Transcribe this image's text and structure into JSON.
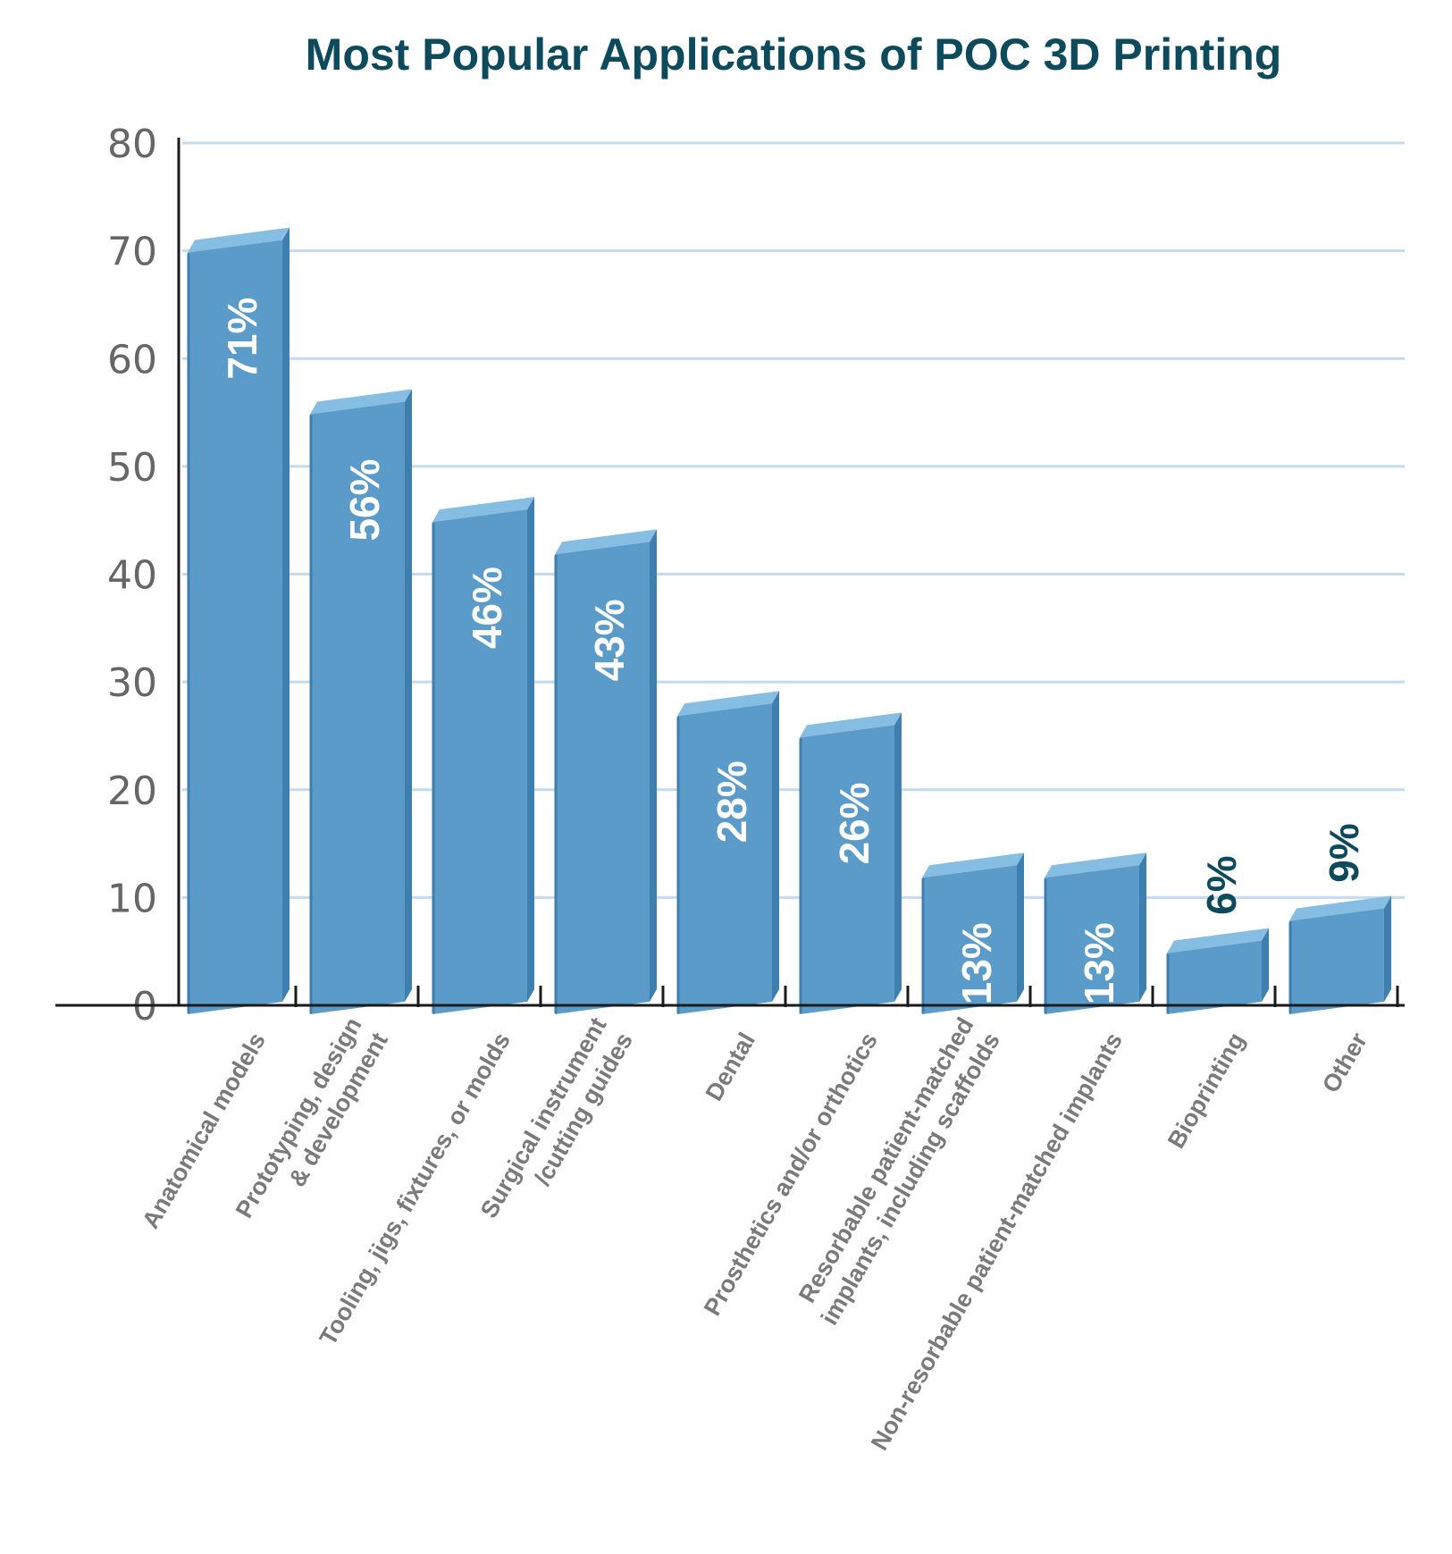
{
  "chart_data": {
    "type": "bar",
    "title": "Most Popular Applications of POC 3D Printing",
    "xlabel": "",
    "ylabel": "",
    "ylim": [
      0,
      80
    ],
    "yticks": [
      "0",
      "10",
      "20",
      "30",
      "40",
      "50",
      "60",
      "70",
      "80"
    ],
    "grid": true,
    "categories": [
      [
        "Anatomical models"
      ],
      [
        "Prototyping, design",
        "& development"
      ],
      [
        "Tooling, jigs, fixtures, or molds"
      ],
      [
        "Surgical instrument",
        "/cutting guides"
      ],
      [
        "Dental"
      ],
      [
        "Prosthetics and/or orthotics"
      ],
      [
        "Resorbable patient-matched",
        "implants, including scaffolds"
      ],
      [
        "Non-resorbable patient-matched implants"
      ],
      [
        "Bioprinting"
      ],
      [
        "Other"
      ]
    ],
    "values": [
      71,
      56,
      46,
      43,
      28,
      26,
      13,
      13,
      6,
      9
    ],
    "data_labels": [
      "71%",
      "56%",
      "46%",
      "43%",
      "28%",
      "26%",
      "13%",
      "13%",
      "6%",
      "9%"
    ],
    "colors": {
      "bar_front": "#5b9bc9",
      "bar_top": "#86bde3",
      "bar_side": "#3f7fb0",
      "title": "#0c4a5c",
      "grid": "#c3daf0",
      "axis": "#1a1a1a",
      "tick_text": "#666666",
      "category_text": "#7a7a7a",
      "label_inside": "#ffffff",
      "label_outside": "#0c4a5c"
    }
  }
}
